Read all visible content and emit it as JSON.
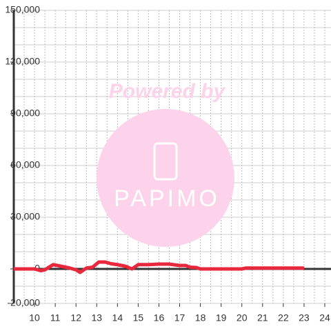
{
  "chart_data": {
    "type": "line",
    "watermark": {
      "line1": "Powered by",
      "line2": "PAPIMO"
    },
    "x": [
      9.0,
      9.5,
      10.0,
      10.3,
      10.5,
      10.9,
      11.3,
      11.7,
      12.0,
      12.2,
      12.5,
      12.8,
      13.1,
      13.4,
      13.7,
      14.0,
      14.4,
      14.7,
      15.0,
      15.5,
      16.0,
      16.5,
      17.0,
      17.3,
      17.5,
      17.8,
      18.0,
      18.5,
      19.0,
      19.5,
      20.0,
      20.2,
      21.0,
      22.0,
      23.0
    ],
    "series": [
      {
        "color": "#e8283c",
        "values": [
          0,
          0,
          0,
          -1000,
          -500,
          2500,
          1500,
          500,
          -500,
          -2000,
          500,
          1000,
          4000,
          4000,
          3000,
          2500,
          1500,
          0,
          2500,
          2500,
          2800,
          2800,
          2000,
          2000,
          1000,
          800,
          0,
          0,
          0,
          0,
          0,
          500,
          500,
          500,
          500
        ]
      }
    ],
    "xlim": [
      9,
      24.3
    ],
    "xticks": [
      10,
      11,
      12,
      13,
      14,
      15,
      16,
      17,
      18,
      19,
      20,
      21,
      22,
      23,
      24
    ],
    "xgrid": [
      9.5,
      10,
      10.5,
      11,
      11.5,
      12,
      12.5,
      13,
      13.5,
      14,
      14.5,
      15,
      15.5,
      16,
      16.5,
      17,
      17.5,
      18,
      18.5,
      19,
      19.5,
      20,
      20.5,
      21,
      21.5,
      22,
      22.5,
      23,
      23.5,
      24
    ],
    "ylim": [
      -20000,
      150000
    ],
    "yticks": [
      {
        "value": -20000,
        "label": "-20,000"
      },
      0,
      {
        "value": 30000,
        "label": "30,000"
      },
      {
        "value": 60000,
        "label": "60,000"
      },
      {
        "value": 90000,
        "label": "90,000"
      },
      {
        "value": 120000,
        "label": "120,000"
      },
      {
        "value": 150000,
        "label": "150,000"
      }
    ],
    "ygrid": [
      -10000,
      10000,
      20000,
      40000,
      50000,
      70000,
      80000,
      100000,
      110000,
      130000,
      140000
    ],
    "grid": true
  }
}
